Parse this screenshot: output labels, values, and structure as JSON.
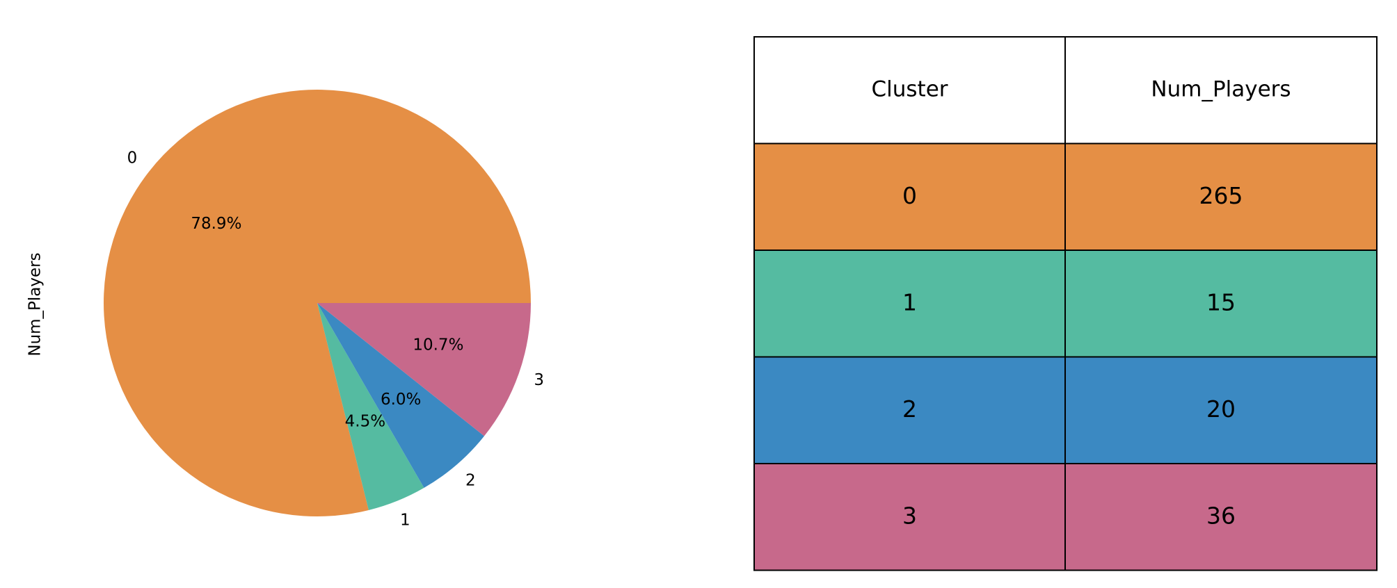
{
  "chart_data": [
    {
      "type": "pie",
      "ylabel": "Num_Players",
      "title": "",
      "categories": [
        "0",
        "1",
        "2",
        "3"
      ],
      "values": [
        265,
        15,
        20,
        36
      ],
      "percent_labels": [
        "78.9%",
        "4.5%",
        "6.0%",
        "10.7%"
      ],
      "colors": [
        "#e58f45",
        "#55bba1",
        "#3b89c2",
        "#c7698b"
      ]
    },
    {
      "type": "table",
      "columns": [
        "Cluster",
        "Num_Players"
      ],
      "rows": [
        [
          "0",
          "265"
        ],
        [
          "1",
          "15"
        ],
        [
          "2",
          "20"
        ],
        [
          "3",
          "36"
        ]
      ],
      "header_color": "#ffffff",
      "row_colors": [
        "#e58f45",
        "#55bba1",
        "#3b89c2",
        "#c7698b"
      ]
    }
  ]
}
